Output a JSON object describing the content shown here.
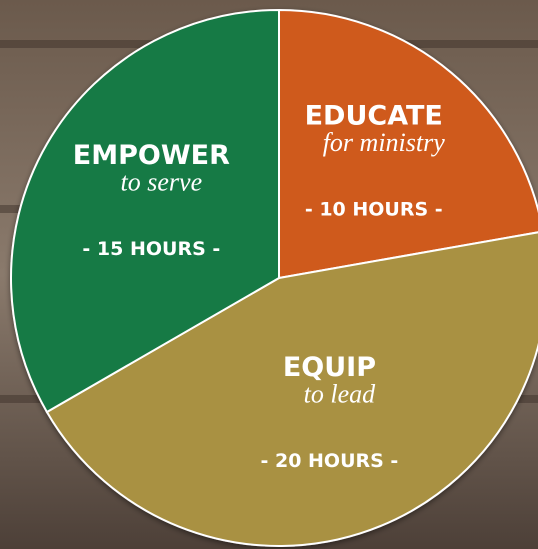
{
  "chart_data": {
    "type": "pie",
    "categories": [
      "EDUCATE",
      "EQUIP",
      "EMPOWER"
    ],
    "subtitles": [
      "for ministry",
      "to lead",
      "to serve"
    ],
    "values": [
      10,
      20,
      15
    ],
    "value_labels": [
      "- 10 HOURS -",
      "- 20 HOURS -",
      "- 15 HOURS -"
    ],
    "colors": [
      "#cf5a1c",
      "#a99143",
      "#177a45"
    ]
  }
}
